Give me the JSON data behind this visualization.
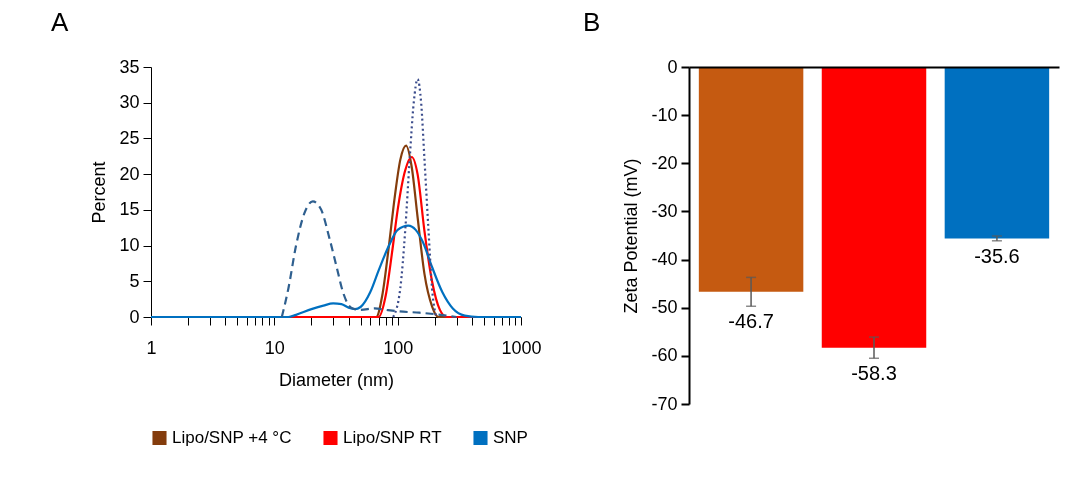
{
  "chart_data": [
    {
      "type": "line",
      "title": "A",
      "xlabel": "Diameter (nm)",
      "ylabel": "Percent",
      "log": "x",
      "xlim": [
        1,
        1000
      ],
      "xticks": [
        1,
        {
          "value": 2,
          "label": null
        },
        {
          "value": 3,
          "label": null
        },
        {
          "value": 4,
          "label": null
        },
        {
          "value": 5,
          "label": null
        },
        {
          "value": 6,
          "label": null
        },
        {
          "value": 7,
          "label": null
        },
        {
          "value": 8,
          "label": null
        },
        {
          "value": 9,
          "label": null
        },
        10,
        {
          "value": 20,
          "label": null
        },
        {
          "value": 30,
          "label": null
        },
        {
          "value": 40,
          "label": null
        },
        {
          "value": 50,
          "label": null
        },
        {
          "value": 60,
          "label": null
        },
        {
          "value": 70,
          "label": null
        },
        {
          "value": 80,
          "label": null
        },
        {
          "value": 90,
          "label": null
        },
        100,
        {
          "value": 200,
          "label": null
        },
        {
          "value": 300,
          "label": null
        },
        {
          "value": 400,
          "label": null
        },
        {
          "value": 500,
          "label": null
        },
        {
          "value": 600,
          "label": null
        },
        {
          "value": 700,
          "label": null
        },
        {
          "value": 800,
          "label": null
        },
        {
          "value": 900,
          "label": null
        },
        1000
      ],
      "ylim": [
        0,
        35
      ],
      "yticks": [
        0,
        5,
        10,
        15,
        20,
        25,
        30,
        35
      ],
      "legend": "bottom",
      "line_style": "solid",
      "series": [
        {
          "name": "Lipo/SNP +4 °C",
          "color": "#843c0c",
          "x": [
            1,
            60,
            67,
            75,
            85,
            95,
            105,
            117,
            130,
            145,
            165,
            190,
            214,
            1000
          ],
          "values": [
            0,
            0,
            0,
            3,
            10,
            17,
            22,
            24,
            21,
            14,
            6,
            1.5,
            0,
            0
          ]
        },
        {
          "name": "Lipo/SNP RT",
          "color": "#ff0000",
          "x": [
            1,
            70,
            80,
            90,
            100,
            115,
            130,
            145,
            165,
            190,
            220,
            250,
            1000
          ],
          "values": [
            0,
            0,
            3,
            9,
            15,
            20.5,
            22.4,
            20,
            12,
            5,
            1,
            0,
            0
          ]
        },
        {
          "name": "SNP",
          "color": "#0070c0",
          "x": [
            1,
            13,
            15,
            20,
            25,
            30,
            35,
            40,
            45,
            50,
            60,
            70,
            85,
            100,
            122,
            140,
            160,
            190,
            230,
            280,
            350,
            450,
            1000
          ],
          "values": [
            0,
            0,
            0.3,
            1.1,
            1.6,
            1.9,
            1.8,
            1.3,
            1.1,
            1.4,
            3.5,
            6.5,
            10,
            12.2,
            12.8,
            12.2,
            10.5,
            7,
            3.5,
            1.2,
            0.2,
            0,
            0
          ]
        },
        {
          "color": "#2e5f8f",
          "line_style": "dashed",
          "x": [
            11.5,
            13,
            15,
            17.5,
            20.5,
            24,
            28,
            32,
            36,
            42,
            50,
            65,
            80,
            100,
            150,
            200,
            300
          ],
          "values": [
            0,
            4,
            10,
            14.5,
            16.2,
            15,
            11,
            7,
            3.5,
            1.3,
            1,
            1.2,
            1,
            0.8,
            0.6,
            0.4,
            0
          ]
        },
        {
          "color": "#3b4c8c",
          "line_style": "dotted",
          "x": [
            92,
            105,
            115,
            125,
            135,
            145,
            155,
            165,
            178,
            190,
            205
          ],
          "values": [
            0,
            4,
            12,
            22,
            30,
            33.3,
            30,
            22,
            12,
            4,
            0
          ]
        }
      ]
    },
    {
      "type": "bar",
      "title": "B",
      "ylabel": "Zeta Potential (mV)",
      "categories": [
        null,
        null,
        null
      ],
      "values": [
        -46.7,
        -58.3,
        -35.6
      ],
      "colors": [
        "#c55a11",
        "#ff0000",
        "#0070c0"
      ],
      "errors": [
        3,
        2.2,
        0.5
      ],
      "data_labels": true,
      "ylim": [
        -70,
        0
      ],
      "yticks": [
        0,
        -10,
        -20,
        -30,
        -40,
        -50,
        -60,
        -70
      ],
      "tick_labels": "y"
    }
  ]
}
